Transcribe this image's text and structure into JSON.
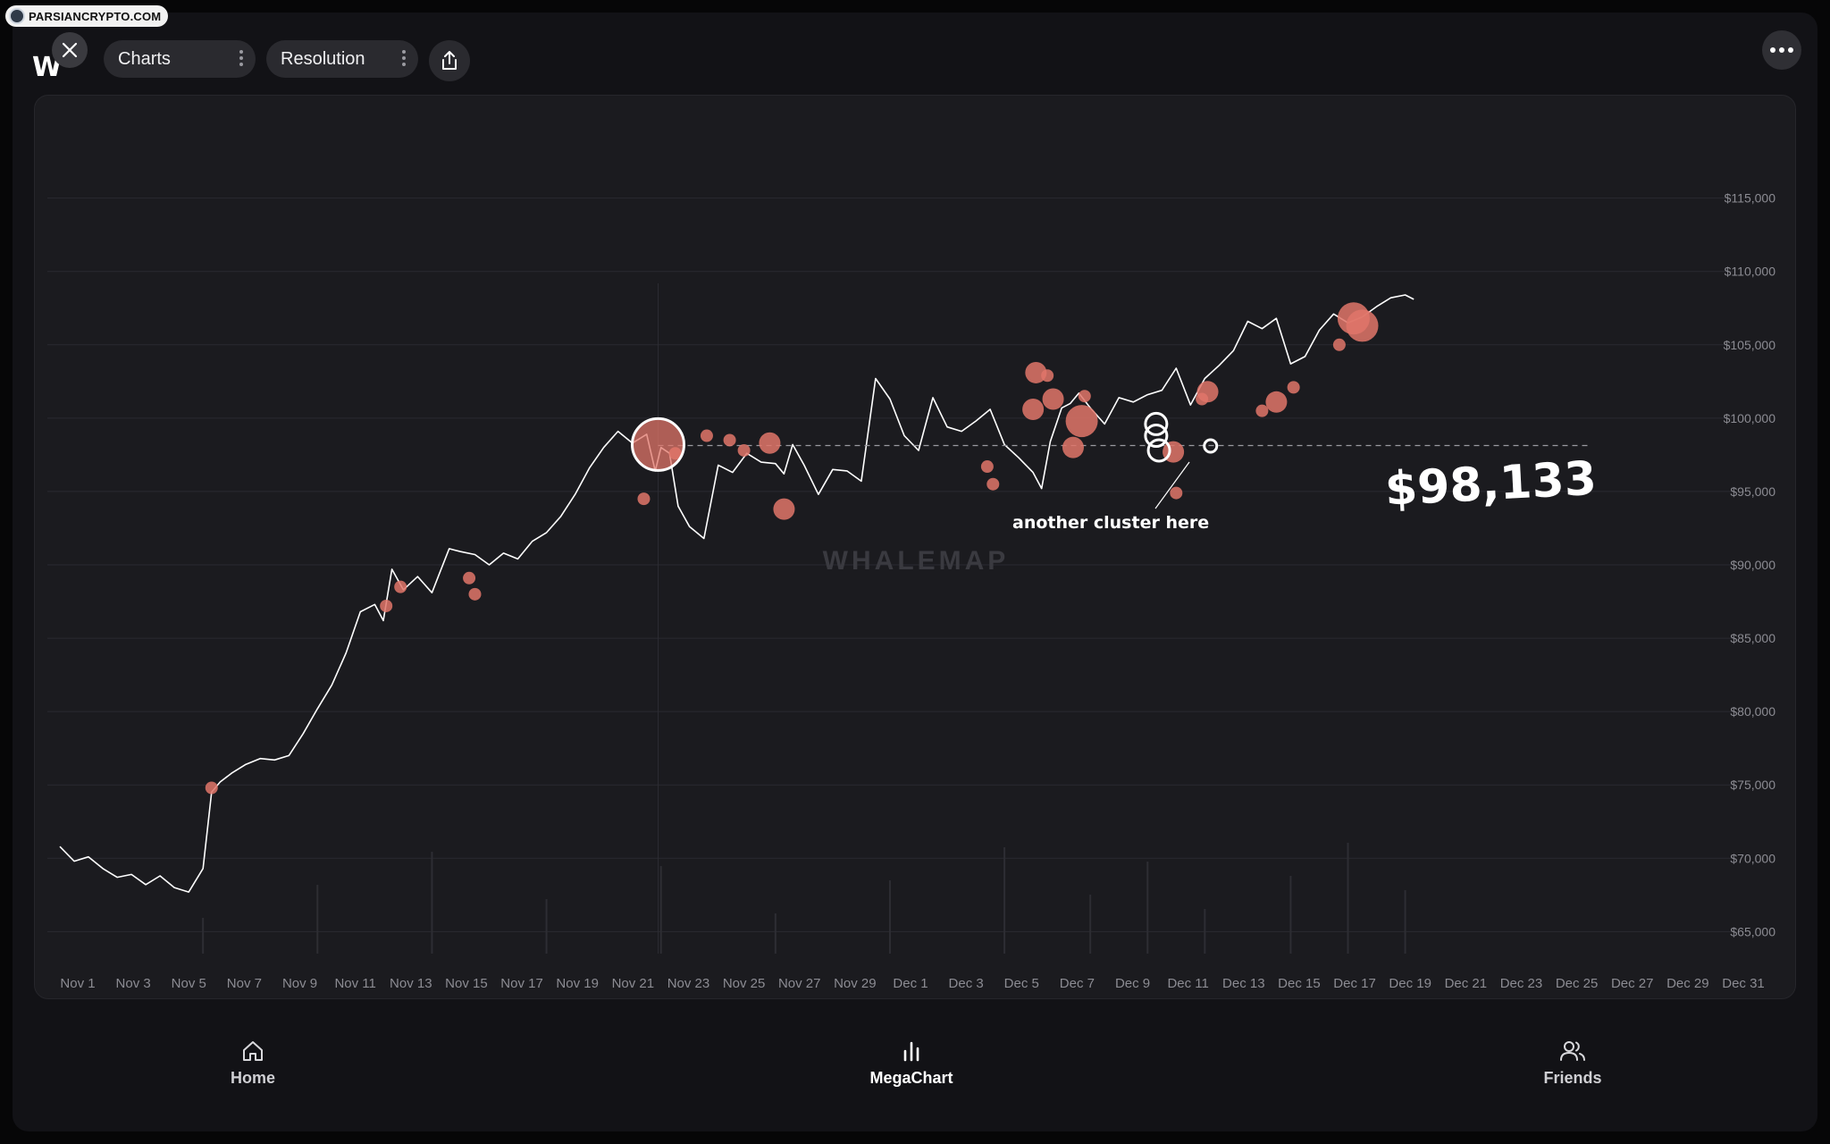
{
  "watermark_badge": "PARSIANCRYPTO.COM",
  "logo_text": "W",
  "toolbar": {
    "charts_label": "Charts",
    "resolution_label": "Resolution"
  },
  "chart": {
    "watermark": "WHALEMAP",
    "annotation": "another cluster here",
    "price_callout": "$98,133"
  },
  "chart_data": {
    "type": "line",
    "xlabel": "",
    "ylabel": "",
    "x_ticks": [
      "Nov 1",
      "Nov 3",
      "Nov 5",
      "Nov 7",
      "Nov 9",
      "Nov 11",
      "Nov 13",
      "Nov 15",
      "Nov 17",
      "Nov 19",
      "Nov 21",
      "Nov 23",
      "Nov 25",
      "Nov 27",
      "Nov 29",
      "Dec 1",
      "Dec 3",
      "Dec 5",
      "Dec 7",
      "Dec 9",
      "Dec 11",
      "Dec 13",
      "Dec 15",
      "Dec 17",
      "Dec 19",
      "Dec 21",
      "Dec 23",
      "Dec 25",
      "Dec 27",
      "Dec 29",
      "Dec 31"
    ],
    "y_ticks": [
      65000,
      70000,
      75000,
      80000,
      85000,
      90000,
      95000,
      100000,
      105000,
      110000,
      115000
    ],
    "y_tick_labels": [
      "$65,000",
      "$70,000",
      "$75,000",
      "$80,000",
      "$85,000",
      "$90,000",
      "$95,000",
      "$100,000",
      "$105,000",
      "$110,000",
      "$115,000"
    ],
    "ylim": [
      63500,
      116500
    ],
    "grid": true,
    "reference_line": {
      "value": 98133
    },
    "series": [
      {
        "x_days": [
          0,
          0.5,
          1,
          1.5,
          2,
          2.5,
          3,
          3.5,
          4,
          4.5,
          5,
          5.3,
          5.6,
          6,
          6.5,
          7,
          7.5,
          8,
          8.5,
          9,
          9.5,
          10,
          10.5,
          11,
          11.3,
          11.6,
          12,
          12.5,
          13,
          13.3,
          13.6,
          14,
          14.5,
          15,
          15.5,
          16,
          16.5,
          17,
          17.5,
          18,
          18.5,
          19,
          19.5,
          20,
          20.5,
          20.8,
          21,
          21.3,
          21.6,
          22,
          22.5,
          23,
          23.5,
          24,
          24.5,
          25,
          25.3,
          25.6,
          26,
          26.5,
          27,
          27.5,
          28,
          28.5,
          29,
          29.5,
          30,
          30.5,
          31,
          31.5,
          32,
          32.5,
          33,
          33.5,
          34,
          34.3,
          34.6,
          35,
          35.3,
          35.6,
          36,
          36.5,
          37,
          37.5,
          38,
          38.5,
          39,
          39.5,
          40,
          40.5,
          41,
          41.5,
          42,
          42.5,
          43,
          43.5,
          44,
          44.5,
          45,
          45.5,
          46,
          46.5,
          47,
          47.3
        ],
        "price": [
          70800,
          69800,
          70100,
          69300,
          68700,
          68900,
          68200,
          68800,
          68000,
          67700,
          69300,
          74500,
          75200,
          75800,
          76400,
          76800,
          76700,
          77000,
          78500,
          80200,
          81800,
          84000,
          86800,
          87300,
          86200,
          89700,
          88300,
          89200,
          88100,
          89600,
          91100,
          90900,
          90700,
          90000,
          90800,
          90400,
          91600,
          92200,
          93300,
          94800,
          96600,
          98000,
          99100,
          98300,
          98900,
          96400,
          98000,
          97600,
          94000,
          92600,
          91800,
          96800,
          96300,
          97600,
          97000,
          96900,
          96200,
          98200,
          96800,
          94800,
          96500,
          96400,
          95700,
          102700,
          101300,
          98800,
          97800,
          101400,
          99400,
          99100,
          99800,
          100600,
          98200,
          97300,
          96300,
          95200,
          98400,
          100700,
          101000,
          101700,
          100700,
          99600,
          101400,
          101100,
          101600,
          101900,
          103400,
          100900,
          102700,
          103600,
          104600,
          106600,
          106100,
          106800,
          103700,
          104200,
          106000,
          107100,
          106500,
          106900,
          107600,
          108200,
          108400,
          108100
        ],
        "volume_spikes": [
          5,
          9,
          13,
          17,
          21,
          25,
          29,
          33,
          36,
          38,
          40,
          43,
          45,
          47
        ]
      }
    ],
    "clusters_filled": [
      {
        "x": 5.3,
        "y": 74800,
        "r": "small"
      },
      {
        "x": 11.4,
        "y": 87200,
        "r": "small"
      },
      {
        "x": 11.9,
        "y": 88500,
        "r": "small"
      },
      {
        "x": 14.3,
        "y": 89100,
        "r": "small"
      },
      {
        "x": 14.5,
        "y": 88000,
        "r": "small"
      },
      {
        "x": 20.4,
        "y": 94500,
        "r": "small"
      },
      {
        "x": 21.5,
        "y": 97600,
        "r": "small"
      },
      {
        "x": 22.6,
        "y": 98800,
        "r": "small"
      },
      {
        "x": 23.4,
        "y": 98500,
        "r": "small"
      },
      {
        "x": 23.9,
        "y": 97800,
        "r": "small"
      },
      {
        "x": 24.8,
        "y": 98300,
        "r": "medium"
      },
      {
        "x": 25.3,
        "y": 93800,
        "r": "medium"
      },
      {
        "x": 32.4,
        "y": 96700,
        "r": "small"
      },
      {
        "x": 32.6,
        "y": 95500,
        "r": "small"
      },
      {
        "x": 34.1,
        "y": 103100,
        "r": "medium"
      },
      {
        "x": 34.5,
        "y": 102900,
        "r": "small"
      },
      {
        "x": 34.7,
        "y": 101300,
        "r": "medium"
      },
      {
        "x": 34.0,
        "y": 100600,
        "r": "medium"
      },
      {
        "x": 35.7,
        "y": 99800,
        "r": "large"
      },
      {
        "x": 35.4,
        "y": 98000,
        "r": "medium"
      },
      {
        "x": 35.8,
        "y": 101500,
        "r": "small"
      },
      {
        "x": 38.9,
        "y": 97700,
        "r": "medium"
      },
      {
        "x": 39.0,
        "y": 94900,
        "r": "small"
      },
      {
        "x": 39.9,
        "y": 101300,
        "r": "small"
      },
      {
        "x": 40.1,
        "y": 101800,
        "r": "medium"
      },
      {
        "x": 42.0,
        "y": 100500,
        "r": "small"
      },
      {
        "x": 42.5,
        "y": 101100,
        "r": "medium"
      },
      {
        "x": 43.1,
        "y": 102100,
        "r": "small"
      },
      {
        "x": 45.2,
        "y": 106800,
        "r": "large"
      },
      {
        "x": 45.5,
        "y": 106300,
        "r": "large"
      },
      {
        "x": 44.7,
        "y": 105000,
        "r": "small"
      }
    ],
    "clusters_outlined": [
      {
        "x": 20.9,
        "y": 98200,
        "r": "xlarge"
      },
      {
        "x": 38.3,
        "y": 99600,
        "r": "medium"
      },
      {
        "x": 38.3,
        "y": 98800,
        "r": "medium"
      },
      {
        "x": 38.4,
        "y": 97800,
        "r": "medium"
      },
      {
        "x": 40.2,
        "y": 98100,
        "r": "small"
      }
    ]
  },
  "nav": {
    "home": "Home",
    "megachart": "MegaChart",
    "friends": "Friends"
  },
  "colors": {
    "background": "#121216",
    "chart_bg": "#1b1b1f",
    "line": "#ffffff",
    "cluster": "#e0766a",
    "grid": "#2a2a30",
    "axis_text": "#8c8c93"
  },
  "icons": {
    "close": "close-icon",
    "share": "share-icon",
    "more": "more-icon",
    "home": "home-icon",
    "chart": "bar-chart-icon",
    "friends": "users-icon"
  }
}
